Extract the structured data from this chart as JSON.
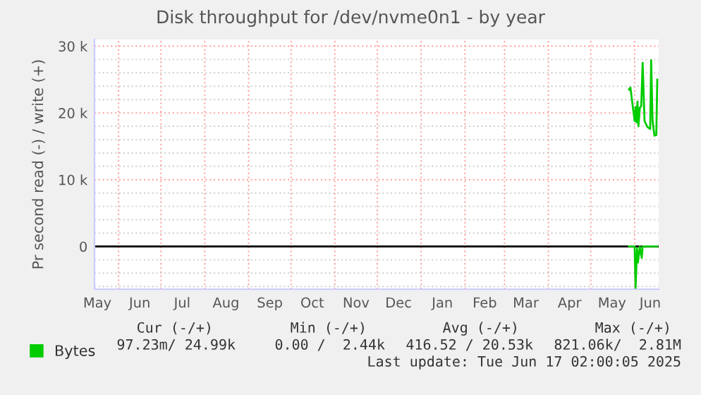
{
  "chart_data": {
    "type": "line",
    "title": "Disk throughput for /dev/nvme0n1 - by year",
    "ylabel": "Pr second read (-) / write (+)",
    "xlim": [
      "2024-05-15",
      "2025-06-18"
    ],
    "xticks": [
      {
        "value": "2024-05-17",
        "label": "May"
      },
      {
        "value": "2024-06-01",
        "label": null
      },
      {
        "value": "2024-06-16",
        "label": "Jun"
      },
      {
        "value": "2024-07-01",
        "label": null
      },
      {
        "value": "2024-07-16",
        "label": "Jul"
      },
      {
        "value": "2024-08-01",
        "label": null
      },
      {
        "value": "2024-08-16",
        "label": "Aug"
      },
      {
        "value": "2024-09-01",
        "label": null
      },
      {
        "value": "2024-09-16",
        "label": "Sep"
      },
      {
        "value": "2024-10-01",
        "label": null
      },
      {
        "value": "2024-10-16",
        "label": "Oct"
      },
      {
        "value": "2024-11-01",
        "label": null
      },
      {
        "value": "2024-11-16",
        "label": "Nov"
      },
      {
        "value": "2024-12-01",
        "label": null
      },
      {
        "value": "2024-12-16",
        "label": "Dec"
      },
      {
        "value": "2025-01-01",
        "label": null
      },
      {
        "value": "2025-01-16",
        "label": "Jan"
      },
      {
        "value": "2025-02-01",
        "label": null
      },
      {
        "value": "2025-02-15",
        "label": "Feb"
      },
      {
        "value": "2025-03-01",
        "label": null
      },
      {
        "value": "2025-03-16",
        "label": "Mar"
      },
      {
        "value": "2025-04-01",
        "label": null
      },
      {
        "value": "2025-04-16",
        "label": "Apr"
      },
      {
        "value": "2025-05-01",
        "label": null
      },
      {
        "value": "2025-05-16",
        "label": "May"
      },
      {
        "value": "2025-06-01",
        "label": null
      },
      {
        "value": "2025-06-12",
        "label": "Jun"
      }
    ],
    "ylim": [
      -6400,
      31000
    ],
    "yticks": [
      {
        "value": -6000,
        "label": null
      },
      {
        "value": -4000,
        "label": null
      },
      {
        "value": -2000,
        "label": null
      },
      {
        "value": 0,
        "label": "0"
      },
      {
        "value": 2000,
        "label": null
      },
      {
        "value": 4000,
        "label": null
      },
      {
        "value": 6000,
        "label": null
      },
      {
        "value": 8000,
        "label": null
      },
      {
        "value": 10000,
        "label": "10 k"
      },
      {
        "value": 12000,
        "label": null
      },
      {
        "value": 14000,
        "label": null
      },
      {
        "value": 16000,
        "label": null
      },
      {
        "value": 18000,
        "label": null
      },
      {
        "value": 20000,
        "label": "20 k"
      },
      {
        "value": 22000,
        "label": null
      },
      {
        "value": 24000,
        "label": null
      },
      {
        "value": 26000,
        "label": null
      },
      {
        "value": 28000,
        "label": null
      },
      {
        "value": 30000,
        "label": "30 k"
      }
    ],
    "grid": true,
    "legend": "bottom",
    "ref_lines": [
      {
        "axis": "y",
        "value": 0,
        "color": "#000000"
      }
    ],
    "series": [
      {
        "name": "Bytes",
        "color": "#00cc00",
        "x": [
          "2025-05-28",
          "2025-05-29",
          "2025-05-30T16:00",
          "2025-06-01",
          "2025-06-01T16:00",
          "2025-06-02T08:00",
          "2025-06-03",
          "2025-06-03T16:00",
          "2025-06-04T16:00",
          "2025-06-05T16:00",
          "2025-06-06T16:00",
          "2025-06-08",
          "2025-06-10",
          "2025-06-12",
          "2025-06-12T16:00",
          "2025-06-13T16:00",
          "2025-06-15",
          "2025-06-16T08:00",
          "2025-06-17"
        ],
        "values": [
          23500,
          23800,
          21000,
          18800,
          20900,
          18600,
          21700,
          18000,
          20800,
          21000,
          27500,
          18800,
          17900,
          17600,
          27900,
          18800,
          16600,
          16700,
          25000
        ]
      },
      {
        "color": "#00cc00",
        "x": [
          "2025-05-28",
          "2025-06-01",
          "2025-06-01T16:00",
          "2025-06-02T16:00",
          "2025-06-03T08:00",
          "2025-06-04T16:00",
          "2025-06-06",
          "2025-06-06T16:00",
          "2025-06-17"
        ],
        "values": [
          0,
          0,
          -6200,
          -300,
          -2400,
          0,
          -1700,
          0,
          0
        ]
      }
    ],
    "annotations": [
      "Cur (-/+)",
      "Min (-/+)",
      "Avg (-/+)",
      "Max (-/+)",
      "97.23m/ 24.99k",
      "0.00 /  2.44k",
      "416.52 / 20.53k",
      "821.06k/  2.81M",
      "Last update: Tue Jun 17 02:00:05 2025"
    ]
  }
}
